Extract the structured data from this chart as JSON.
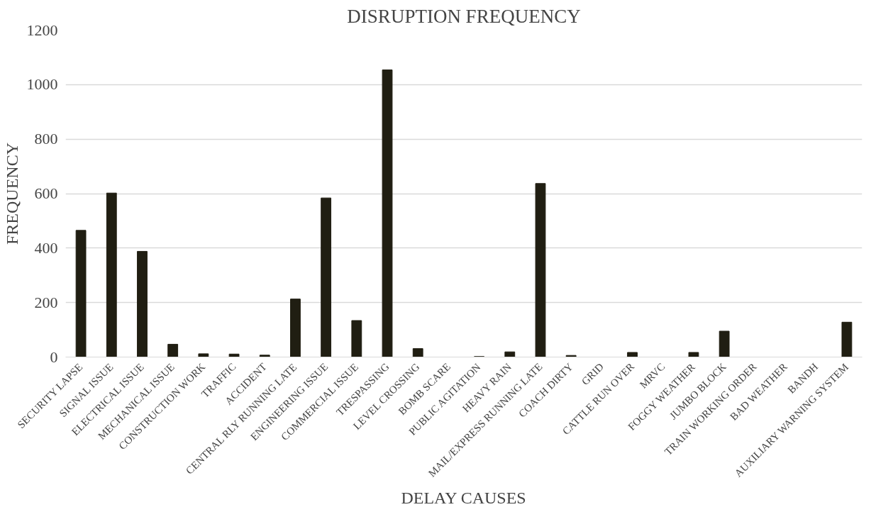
{
  "chart_data": {
    "type": "bar",
    "title": "DISRUPTION FREQUENCY",
    "xlabel": "DELAY CAUSES",
    "ylabel": "FREQUENCY",
    "categories": [
      "SECURITY LAPSE",
      "SIGNAL ISSUE",
      "ELECTRICAL ISSUE",
      "MECHANICAL ISSUE",
      "CONSTRUCTION WORK",
      "TRAFFIC",
      "ACCIDENT",
      "CENTRAL RLY RUNNING LATE",
      "ENGINEERING ISSUE",
      "COMMERCIAL ISSUE",
      "TRESPASSING",
      "LEVEL CROSSING",
      "BOMB SCARE",
      "PUBLIC AGITATION",
      "HEAVY RAIN",
      "MAIL/EXPRESS RUNNING LATE",
      "COACH DIRTY",
      "GRID",
      "CATTLE RUN OVER",
      "MRVC",
      "FOGGY WEATHER",
      "JUMBO BLOCK",
      "TRAIN WORKING ORDER",
      "BAD WEATHER",
      "BANDH",
      "AUXILIARY WARNING SYSTEM"
    ],
    "values": [
      465,
      602,
      388,
      47,
      12,
      11,
      7,
      213,
      584,
      134,
      1054,
      31,
      0,
      2,
      19,
      637,
      6,
      0,
      17,
      0,
      17,
      95,
      0,
      0,
      0,
      128
    ],
    "color": "#201e12",
    "ylim": [
      0,
      1200
    ],
    "yticks": [
      0,
      200,
      400,
      600,
      800,
      1000,
      1200
    ],
    "grid": "y"
  }
}
